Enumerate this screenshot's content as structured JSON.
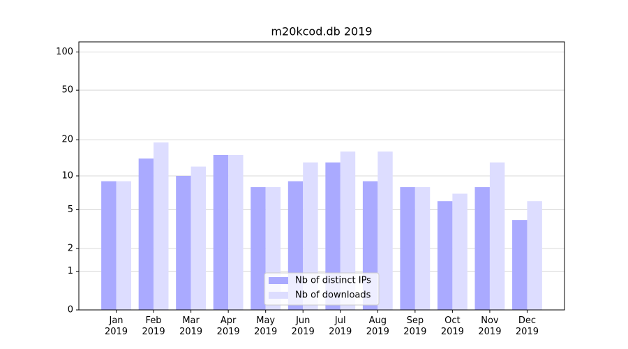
{
  "chart_data": {
    "type": "bar",
    "title": "m20kcod.db 2019",
    "categories": [
      "Jan\n2019",
      "Feb\n2019",
      "Mar\n2019",
      "Apr\n2019",
      "May\n2019",
      "Jun\n2019",
      "Jul\n2019",
      "Aug\n2019",
      "Sep\n2019",
      "Oct\n2019",
      "Nov\n2019",
      "Dec\n2019"
    ],
    "series": [
      {
        "name": "Nb of distinct IPs",
        "color": "#aaaaff",
        "values": [
          9,
          14,
          10,
          15,
          8,
          9,
          13,
          9,
          8,
          6,
          8,
          4
        ]
      },
      {
        "name": "Nb of downloads",
        "color": "#ddddff",
        "values": [
          9,
          19,
          12,
          15,
          8,
          13,
          16,
          16,
          8,
          7,
          13,
          6
        ]
      }
    ],
    "yscale": "log1p",
    "ylim": [
      0,
      120
    ],
    "yticks": [
      0,
      1,
      2,
      5,
      10,
      20,
      50,
      100
    ],
    "grid": true,
    "legend": "lower center"
  }
}
